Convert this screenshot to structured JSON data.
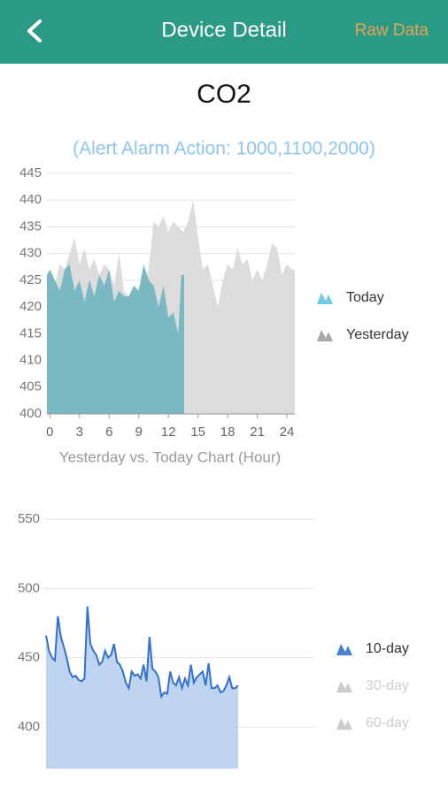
{
  "header": {
    "title": "Device Detail",
    "action": "Raw Data"
  },
  "title": "CO2",
  "subtitle": "(Alert Alarm Action: 1000,1100,2000)",
  "chart_data": [
    {
      "type": "area",
      "x_label": "Yesterday vs. Today Chart (Hour)",
      "xlim": [
        -0.3,
        24.8
      ],
      "xticks": [
        0,
        3,
        6,
        9,
        12,
        15,
        18,
        21,
        24
      ],
      "ylim": [
        400,
        445
      ],
      "yticks": [
        400,
        405,
        410,
        415,
        420,
        425,
        430,
        435,
        440,
        445
      ],
      "grid": true,
      "series": [
        {
          "name": "Yesterday",
          "color": "#dcdcdc",
          "legend_color": "#a9a9a9",
          "x": [
            -0.3,
            0,
            0.5,
            1,
            1.5,
            2,
            2.5,
            3,
            3.5,
            4,
            4.5,
            5,
            5.5,
            6,
            6.5,
            7,
            7.5,
            8,
            8.5,
            9,
            9.5,
            10,
            10.5,
            11,
            11.5,
            12,
            12.5,
            13,
            13.5,
            14,
            14.5,
            15,
            15.5,
            16,
            16.5,
            17,
            17.5,
            18,
            18.5,
            19,
            19.5,
            20,
            20.5,
            21,
            21.5,
            22,
            22.5,
            23,
            23.5,
            24,
            24.5,
            24.8
          ],
          "values": [
            425,
            426,
            424,
            428,
            427,
            430,
            433,
            428,
            431,
            427,
            429,
            426,
            428,
            427,
            424,
            430,
            423,
            422,
            420,
            424,
            423,
            427,
            436,
            435,
            437,
            434,
            436,
            435,
            434,
            436,
            440,
            433,
            427,
            428,
            424,
            420,
            425,
            428,
            427,
            431,
            428,
            429,
            425,
            427,
            425,
            428,
            432,
            431,
            426,
            428,
            427,
            427
          ]
        },
        {
          "name": "Today",
          "color": "#7ab8c4",
          "legend_color": "#6ccbdc",
          "x": [
            -0.3,
            0,
            0.5,
            1,
            1.5,
            2,
            2.5,
            3,
            3.5,
            4,
            4.5,
            5,
            5.5,
            6,
            6.5,
            7,
            7.5,
            8,
            8.5,
            9,
            9.5,
            10,
            10.5,
            11,
            11.5,
            12,
            12.5,
            13,
            13.3,
            13.6
          ],
          "values": [
            426,
            427,
            425,
            423,
            427,
            428,
            423,
            425,
            421,
            425,
            422,
            426,
            424,
            427,
            421,
            423,
            422,
            422,
            424,
            423,
            428,
            425,
            424,
            420,
            424,
            418,
            419,
            415,
            426,
            426
          ]
        }
      ],
      "legend": "right"
    },
    {
      "type": "line-area",
      "ylim": [
        370,
        557
      ],
      "yticks": [
        400,
        450,
        500,
        550
      ],
      "grid": true,
      "series": [
        {
          "name": "10-day",
          "color": "#3470cf",
          "fill": "#bed4f0",
          "legend_color": "#4a7fd4",
          "values": [
            466,
            455,
            450,
            448,
            480,
            465,
            458,
            450,
            440,
            436,
            437,
            434,
            433,
            435,
            487,
            460,
            455,
            452,
            445,
            447,
            455,
            450,
            452,
            460,
            447,
            445,
            440,
            432,
            428,
            440,
            437,
            438,
            435,
            445,
            433,
            465,
            442,
            440,
            436,
            422,
            425,
            424,
            440,
            432,
            430,
            436,
            428,
            435,
            430,
            445,
            432,
            436,
            438,
            440,
            430,
            446,
            428,
            428,
            430,
            425,
            426,
            430,
            436,
            428,
            428,
            430
          ]
        }
      ],
      "hidden_series": [
        {
          "name": "30-day",
          "color": "#cccccc"
        },
        {
          "name": "60-day",
          "color": "#cccccc"
        }
      ],
      "legend": "right"
    }
  ]
}
